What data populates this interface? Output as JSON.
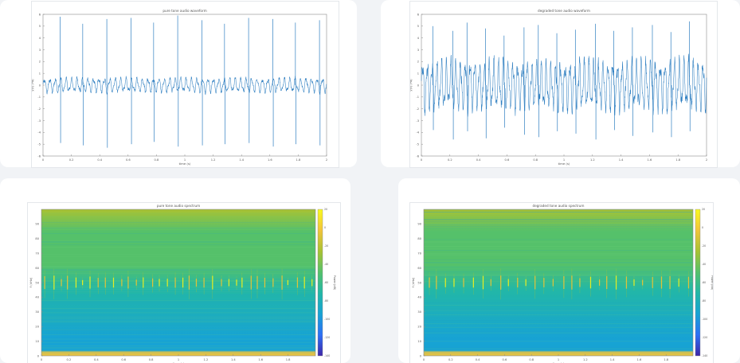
{
  "chart_data": [
    {
      "type": "line",
      "title": "pure tone audio waveform",
      "xlabel": "time (s)",
      "ylabel": "y(t) (Pa)",
      "xlim": [
        0,
        2
      ],
      "ylim": [
        -6,
        6
      ],
      "xticks": [
        "0",
        "0.2",
        "0.4",
        "0.6",
        "0.8",
        "1",
        "1.2",
        "1.4",
        "1.6",
        "1.8",
        "2"
      ],
      "yticks": [
        "-6",
        "-5",
        "-4",
        "-3",
        "-2",
        "-1",
        "0",
        "1",
        "2",
        "3",
        "4",
        "5",
        "6"
      ],
      "grid": false,
      "series": [
        {
          "color": "#2f7fc1",
          "base_frequency_hz": 26,
          "base_amplitude": 0.5,
          "spike_times": [
            0.12,
            0.28,
            0.45,
            0.62,
            0.78,
            0.95,
            1.12,
            1.28,
            1.45,
            1.62,
            1.78,
            1.95
          ],
          "spike_peaks": [
            5.8,
            5.2,
            5.6,
            5.7,
            5.3,
            5.9,
            5.5,
            5.2,
            5.7,
            5.6,
            5.3,
            5.5
          ],
          "spike_troughs": [
            -4.9,
            -5.1,
            -5.3,
            -5.0,
            -4.8,
            -5.2,
            -5.1,
            -5.0,
            -4.9,
            -5.2,
            -5.0,
            -5.1
          ]
        }
      ]
    },
    {
      "type": "line",
      "title": "degraded tone audio waveform",
      "xlabel": "time (s)",
      "ylabel": "y(t) (Pa)",
      "xlim": [
        0,
        2
      ],
      "ylim": [
        -6,
        6
      ],
      "xticks": [
        "0",
        "0.2",
        "0.4",
        "0.6",
        "0.8",
        "1",
        "1.2",
        "1.4",
        "1.6",
        "1.8",
        "2"
      ],
      "yticks": [
        "-6",
        "-5",
        "-4",
        "-3",
        "-2",
        "-1",
        "0",
        "1",
        "2",
        "3",
        "4",
        "5",
        "6"
      ],
      "grid": false,
      "series": [
        {
          "color": "#2f7fc1",
          "base_frequency_hz": 30,
          "base_amplitude": 1.7,
          "spike_times": [
            0.08,
            0.22,
            0.32,
            0.45,
            0.58,
            0.72,
            0.82,
            0.95,
            1.08,
            1.22,
            1.35,
            1.48,
            1.62,
            1.75,
            1.88
          ],
          "spike_peaks": [
            5.0,
            4.6,
            5.3,
            4.8,
            4.2,
            4.9,
            5.1,
            4.4,
            4.7,
            5.2,
            4.6,
            4.9,
            5.1,
            4.5,
            5.4
          ],
          "spike_troughs": [
            -3.8,
            -4.6,
            -3.9,
            -4.5,
            -3.6,
            -4.2,
            -4.4,
            -3.9,
            -4.1,
            -4.6,
            -3.8,
            -4.3,
            -4.0,
            -4.4,
            -3.9
          ]
        }
      ]
    },
    {
      "type": "heatmap",
      "title": "pure tone audio spectrum",
      "xlabel": "time (s)",
      "ylabel": "f (kHz)",
      "colorbar_label": "Power (dB)",
      "xlim": [
        0,
        2
      ],
      "ylim": [
        0,
        100
      ],
      "xticks": [
        "0",
        "0.2",
        "0.4",
        "0.6",
        "0.8",
        "1",
        "1.2",
        "1.4",
        "1.6",
        "1.8"
      ],
      "yticks": [
        "0",
        "10",
        "20",
        "30",
        "40",
        "50",
        "60",
        "70",
        "80",
        "90"
      ],
      "colorbar_ticks": [
        "-140",
        "-120",
        "-100",
        "-80",
        "-60",
        "-40",
        "-20",
        "0",
        "20"
      ],
      "colormap": [
        "#3e26a8",
        "#2d6ff5",
        "#17a3d4",
        "#22b7a7",
        "#55c16a",
        "#a9c232",
        "#f2c43a",
        "#f9f91e"
      ],
      "band_center_khz": 50,
      "burst_count": 36
    },
    {
      "type": "heatmap",
      "title": "degraded tone audio spectrum",
      "xlabel": "time (s)",
      "ylabel": "f (kHz)",
      "colorbar_label": "Power (dB)",
      "xlim": [
        0,
        2
      ],
      "ylim": [
        0,
        100
      ],
      "xticks": [
        "0",
        "0.2",
        "0.4",
        "0.6",
        "0.8",
        "1",
        "1.2",
        "1.4",
        "1.6",
        "1.8"
      ],
      "yticks": [
        "0",
        "10",
        "20",
        "30",
        "40",
        "50",
        "60",
        "70",
        "80",
        "90"
      ],
      "colorbar_ticks": [
        "-140",
        "-120",
        "-100",
        "-80",
        "-60",
        "-40",
        "-20",
        "0",
        "20"
      ],
      "colormap": [
        "#3e26a8",
        "#2d6ff5",
        "#17a3d4",
        "#22b7a7",
        "#55c16a",
        "#a9c232",
        "#f2c43a",
        "#f9f91e"
      ],
      "band_center_khz": 50,
      "burst_count": 30
    }
  ]
}
